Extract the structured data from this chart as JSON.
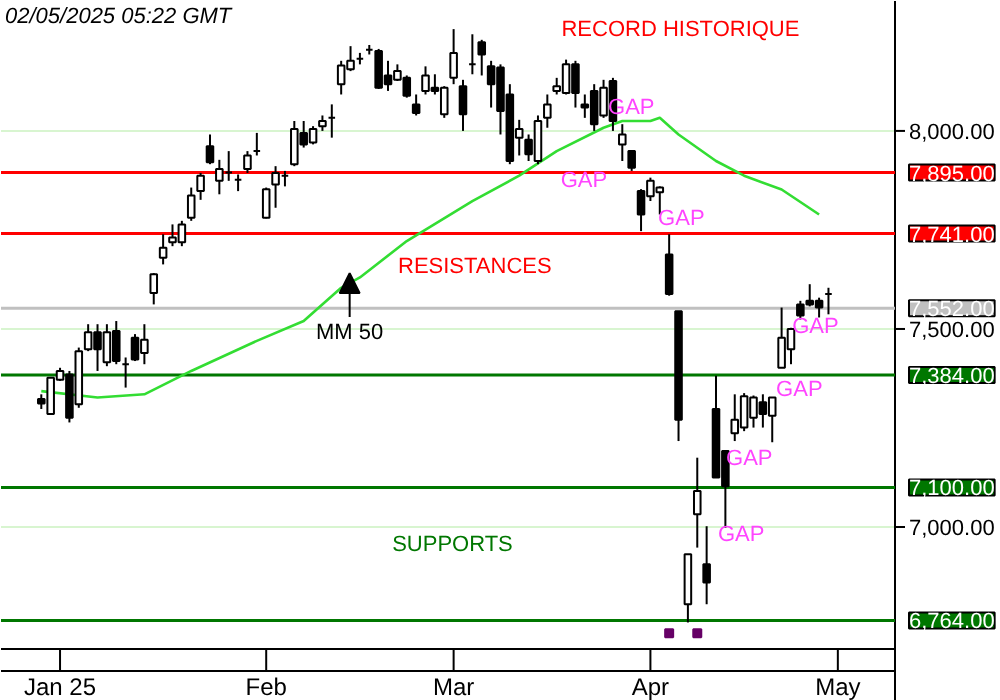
{
  "chart_data": {
    "type": "candlestick",
    "title": "02/05/2025 05:22 GMT",
    "categories": [
      null,
      null,
      "Jan 25",
      null,
      null,
      null,
      null,
      null,
      null,
      null,
      null,
      null,
      null,
      null,
      null,
      null,
      null,
      null,
      null,
      null,
      null,
      null,
      null,
      null,
      "Feb",
      null,
      null,
      null,
      null,
      null,
      null,
      null,
      null,
      null,
      null,
      null,
      null,
      null,
      null,
      null,
      null,
      null,
      null,
      null,
      "Mar",
      null,
      null,
      null,
      null,
      null,
      null,
      null,
      null,
      null,
      null,
      null,
      null,
      null,
      null,
      null,
      null,
      null,
      null,
      null,
      null,
      "Apr",
      null,
      null,
      null,
      null,
      null,
      null,
      null,
      null,
      null,
      null,
      null,
      null,
      null,
      null,
      null,
      null,
      null,
      null,
      null,
      "May"
    ],
    "ohlc": [
      [
        7323,
        7335,
        7298,
        7312
      ],
      [
        7285,
        7377,
        7285,
        7377
      ],
      [
        7372,
        7402,
        7369,
        7394
      ],
      [
        7385,
        7394,
        7264,
        7276
      ],
      [
        7310,
        7453,
        7301,
        7444
      ],
      [
        7449,
        7512,
        7444,
        7492
      ],
      [
        7492,
        7512,
        7394,
        7449
      ],
      [
        7416,
        7512,
        7406,
        7492
      ],
      [
        7495,
        7520,
        7411,
        7419
      ],
      [
        7411,
        7428,
        7352,
        7411
      ],
      [
        7478,
        7487,
        7419,
        7423
      ],
      [
        7439,
        7512,
        7411,
        7473
      ],
      [
        7591,
        7641,
        7562,
        7638
      ],
      [
        7680,
        7739,
        7663,
        7705
      ],
      [
        7719,
        7764,
        7709,
        7731
      ],
      [
        7719,
        7773,
        7709,
        7764
      ],
      [
        7781,
        7857,
        7773,
        7837
      ],
      [
        7848,
        7894,
        7826,
        7887
      ],
      [
        7961,
        7991,
        7916,
        7921
      ],
      [
        7874,
        7927,
        7840,
        7904
      ],
      [
        7895,
        7949,
        7874,
        7895
      ],
      [
        7877,
        7890,
        7848,
        7877
      ],
      [
        7904,
        7949,
        7894,
        7938
      ],
      [
        7949,
        7995,
        7938,
        7949
      ],
      [
        7781,
        7857,
        7779,
        7853
      ],
      [
        7865,
        7911,
        7806,
        7894
      ],
      [
        7887,
        7899,
        7860,
        7887
      ],
      [
        7916,
        8025,
        7911,
        8005
      ],
      [
        7995,
        8025,
        7958,
        7966
      ],
      [
        7971,
        8012,
        7966,
        8005
      ],
      [
        8012,
        8039,
        8000,
        8025
      ],
      [
        8033,
        8067,
        7983,
        8033
      ],
      [
        8118,
        8177,
        8092,
        8165
      ],
      [
        8156,
        8214,
        8151,
        8177
      ],
      [
        8182,
        8197,
        8168,
        8182
      ],
      [
        8205,
        8217,
        8193,
        8205
      ],
      [
        8202,
        8207,
        8106,
        8109
      ],
      [
        8140,
        8177,
        8101,
        8118
      ],
      [
        8129,
        8168,
        8126,
        8151
      ],
      [
        8134,
        8140,
        8084,
        8089
      ],
      [
        8067,
        8092,
        8039,
        8045
      ],
      [
        8101,
        8163,
        8092,
        8140
      ],
      [
        8109,
        8143,
        8092,
        8101
      ],
      [
        8042,
        8113,
        8033,
        8109
      ],
      [
        8134,
        8257,
        8118,
        8197
      ],
      [
        8113,
        8129,
        8000,
        8042
      ],
      [
        8168,
        8244,
        8143,
        8168
      ],
      [
        8224,
        8230,
        8140,
        8193
      ],
      [
        8163,
        8177,
        8059,
        8118
      ],
      [
        8160,
        8168,
        7991,
        8050
      ],
      [
        8092,
        8118,
        7916,
        7924
      ],
      [
        7983,
        8028,
        7938,
        8005
      ],
      [
        7978,
        7991,
        7924,
        7941
      ],
      [
        7924,
        8039,
        7916,
        8025
      ],
      [
        8033,
        8092,
        8008,
        8067
      ],
      [
        8101,
        8134,
        8092,
        8113
      ],
      [
        8096,
        8180,
        8092,
        8168
      ],
      [
        8168,
        8177,
        8059,
        8096
      ],
      [
        8067,
        8092,
        8033,
        8059
      ],
      [
        8101,
        8118,
        8000,
        8017
      ],
      [
        8039,
        8129,
        8033,
        8109
      ],
      [
        8126,
        8134,
        8000,
        8025
      ],
      [
        7966,
        8017,
        7924,
        7991
      ],
      [
        7949,
        7949,
        7899,
        7907
      ],
      [
        7848,
        7853,
        7747,
        7789
      ],
      [
        7835,
        7882,
        7823,
        7874
      ],
      [
        7845,
        7860,
        7789,
        7857
      ],
      [
        7688,
        7739,
        7584,
        7588
      ],
      [
        7545,
        7545,
        7217,
        7271
      ],
      [
        6805,
        6931,
        6759,
        6931
      ],
      [
        7032,
        7175,
        6948,
        7091
      ],
      [
        6906,
        7002,
        6805,
        6860
      ],
      [
        7298,
        7382,
        7125,
        7125
      ],
      [
        7192,
        7192,
        6998,
        7103
      ],
      [
        7237,
        7335,
        7217,
        7271
      ],
      [
        7251,
        7338,
        7242,
        7330
      ],
      [
        7276,
        7332,
        7251,
        7327
      ],
      [
        7315,
        7335,
        7251,
        7285
      ],
      [
        7281,
        7327,
        7214,
        7327
      ],
      [
        7402,
        7554,
        7402,
        7478
      ],
      [
        7449,
        7503,
        7411,
        7500
      ],
      [
        7562,
        7571,
        7524,
        7534
      ],
      [
        7571,
        7613,
        7557,
        7562
      ],
      [
        7571,
        7579,
        7529,
        7554
      ],
      [
        7588,
        7604,
        7537,
        7588
      ],
      null
    ],
    "series": [
      {
        "type": "line",
        "color": "#33dd33",
        "values": [
          7343,
          null,
          null,
          null,
          null,
          null,
          7327,
          null,
          null,
          null,
          null,
          7335,
          null,
          null,
          null,
          null,
          7394,
          null,
          null,
          null,
          null,
          null,
          null,
          7470,
          null,
          null,
          null,
          null,
          7520,
          null,
          null,
          null,
          7604,
          null,
          7630,
          null,
          null,
          null,
          null,
          7722,
          null,
          null,
          null,
          null,
          null,
          null,
          7823,
          null,
          null,
          null,
          null,
          7887,
          null,
          null,
          null,
          7949,
          null,
          null,
          null,
          null,
          8008,
          null,
          8025,
          null,
          null,
          8025,
          8033,
          null,
          7991,
          null,
          null,
          null,
          7924,
          null,
          null,
          7887,
          null,
          null,
          null,
          7852,
          null,
          null,
          null,
          7789,
          null,
          null
        ]
      },
      {
        "type": "scatter",
        "color": "#660066",
        "values": [
          null,
          null,
          null,
          null,
          null,
          null,
          null,
          null,
          null,
          null,
          null,
          null,
          null,
          null,
          null,
          null,
          null,
          null,
          null,
          null,
          null,
          null,
          null,
          null,
          null,
          null,
          null,
          null,
          null,
          null,
          null,
          null,
          null,
          null,
          null,
          null,
          null,
          null,
          null,
          null,
          null,
          null,
          null,
          null,
          null,
          null,
          null,
          null,
          null,
          null,
          null,
          null,
          null,
          null,
          null,
          null,
          null,
          null,
          null,
          null,
          null,
          null,
          null,
          null,
          null,
          null,
          null,
          6732,
          null,
          null,
          6732,
          null,
          null,
          null,
          null,
          null,
          null,
          null,
          null,
          null,
          null,
          null,
          null,
          null,
          null,
          null
        ]
      }
    ],
    "ylim": [
      6692,
      8328
    ],
    "yticks": [
      {
        "value": 7000,
        "label": "7,000.00"
      },
      {
        "value": 7500,
        "label": "7,500.00"
      },
      {
        "value": 8000,
        "label": "8,000.00"
      }
    ],
    "grid": "y",
    "ref_lines": [
      {
        "axis": "y",
        "value": 7895,
        "label": "7,895.00",
        "color": "#ff0000"
      },
      {
        "axis": "y",
        "value": 7741,
        "label": "7,741.00",
        "color": "#ff0000"
      },
      {
        "axis": "y",
        "value": 7552,
        "label": "7,552.00",
        "color": "#c0c0c0"
      },
      {
        "axis": "y",
        "value": 7384,
        "label": "7,384.00",
        "color": "#007700"
      },
      {
        "axis": "y",
        "value": 7100,
        "label": "7,100.00",
        "color": "#007700"
      },
      {
        "axis": "y",
        "value": 6764,
        "label": "6,764.00",
        "color": "#007700"
      }
    ],
    "annotations": [
      "RECORD HISTORIQUE",
      "RESISTANCES",
      "SUPPORTS",
      {
        "text": "MM 50",
        "y": 7641
      },
      "GAP",
      "GAP",
      "GAP",
      "GAP",
      "GAP",
      "GAP",
      "GAP"
    ]
  }
}
